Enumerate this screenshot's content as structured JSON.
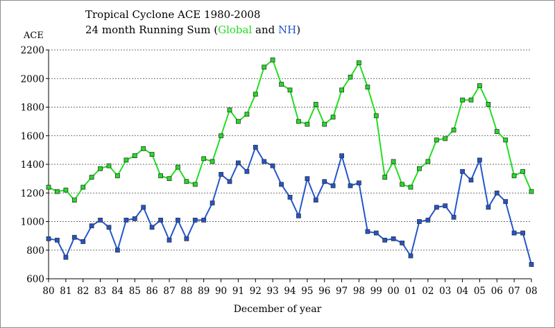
{
  "colors": {
    "global": "#22dd22",
    "nh": "#2255cc",
    "axis": "#000000"
  },
  "chart_data": {
    "type": "line",
    "title": "Tropical Cyclone ACE 1980-2008",
    "subtitle_parts": [
      "24 month Running Sum (",
      "Global",
      " and ",
      "NH",
      ")"
    ],
    "ylabel": "ACE",
    "xlabel": "December of year",
    "ylim": [
      600,
      2200
    ],
    "yticks": [
      600,
      800,
      1000,
      1200,
      1400,
      1600,
      1800,
      2000,
      2200
    ],
    "xlim": [
      1980,
      2008
    ],
    "xticks": [
      "80",
      "81",
      "82",
      "83",
      "84",
      "85",
      "86",
      "87",
      "88",
      "89",
      "90",
      "91",
      "92",
      "93",
      "94",
      "95",
      "96",
      "97",
      "98",
      "99",
      "00",
      "01",
      "02",
      "03",
      "04",
      "05",
      "06",
      "07",
      "08"
    ],
    "grid": true,
    "legend": "in-title",
    "series": [
      {
        "name": "Global",
        "color": "#22dd22",
        "x": [
          1980.0,
          1980.5,
          1981.0,
          1981.5,
          1982.0,
          1982.5,
          1983.0,
          1983.5,
          1984.0,
          1984.5,
          1985.0,
          1985.5,
          1986.0,
          1986.5,
          1987.0,
          1987.5,
          1988.0,
          1988.5,
          1989.0,
          1989.5,
          1990.0,
          1990.5,
          1991.0,
          1991.5,
          1992.0,
          1992.5,
          1993.0,
          1993.5,
          1994.0,
          1994.5,
          1995.0,
          1995.5,
          1996.0,
          1996.5,
          1997.0,
          1997.5,
          1998.0,
          1998.5,
          1999.0,
          1999.5,
          2000.0,
          2000.5,
          2001.0,
          2001.5,
          2002.0,
          2002.5,
          2003.0,
          2003.5,
          2004.0,
          2004.5,
          2005.0,
          2005.5,
          2006.0,
          2006.5,
          2007.0,
          2007.5,
          2008.0
        ],
        "values": [
          1240,
          1210,
          1220,
          1150,
          1240,
          1310,
          1370,
          1390,
          1320,
          1430,
          1460,
          1510,
          1470,
          1320,
          1300,
          1380,
          1280,
          1260,
          1440,
          1420,
          1600,
          1780,
          1700,
          1750,
          1890,
          2080,
          2130,
          1960,
          1920,
          1700,
          1680,
          1820,
          1680,
          1730,
          1920,
          2010,
          2110,
          1940,
          1740,
          1310,
          1420,
          1260,
          1240,
          1370,
          1420,
          1570,
          1580,
          1640,
          1850,
          1850,
          1950,
          1820,
          1630,
          1570,
          1320,
          1350,
          1210
        ]
      },
      {
        "name": "NH",
        "color": "#2255cc",
        "x": [
          1980.0,
          1980.5,
          1981.0,
          1981.5,
          1982.0,
          1982.5,
          1983.0,
          1983.5,
          1984.0,
          1984.5,
          1985.0,
          1985.5,
          1986.0,
          1986.5,
          1987.0,
          1987.5,
          1988.0,
          1988.5,
          1989.0,
          1989.5,
          1990.0,
          1990.5,
          1991.0,
          1991.5,
          1992.0,
          1992.5,
          1993.0,
          1993.5,
          1994.0,
          1994.5,
          1995.0,
          1995.5,
          1996.0,
          1996.5,
          1997.0,
          1997.5,
          1998.0,
          1998.5,
          1999.0,
          1999.5,
          2000.0,
          2000.5,
          2001.0,
          2001.5,
          2002.0,
          2002.5,
          2003.0,
          2003.5,
          2004.0,
          2004.5,
          2005.0,
          2005.5,
          2006.0,
          2006.5,
          2007.0,
          2007.5,
          2008.0
        ],
        "values": [
          880,
          870,
          750,
          890,
          860,
          970,
          1010,
          960,
          800,
          1010,
          1020,
          1100,
          960,
          1010,
          870,
          1010,
          880,
          1010,
          1010,
          1130,
          1330,
          1280,
          1410,
          1350,
          1520,
          1420,
          1390,
          1260,
          1170,
          1040,
          1300,
          1150,
          1280,
          1250,
          1460,
          1250,
          1270,
          930,
          920,
          870,
          880,
          850,
          760,
          1000,
          1010,
          1100,
          1110,
          1030,
          1350,
          1290,
          1430,
          1100,
          1200,
          1140,
          920,
          920,
          700
        ]
      }
    ]
  }
}
